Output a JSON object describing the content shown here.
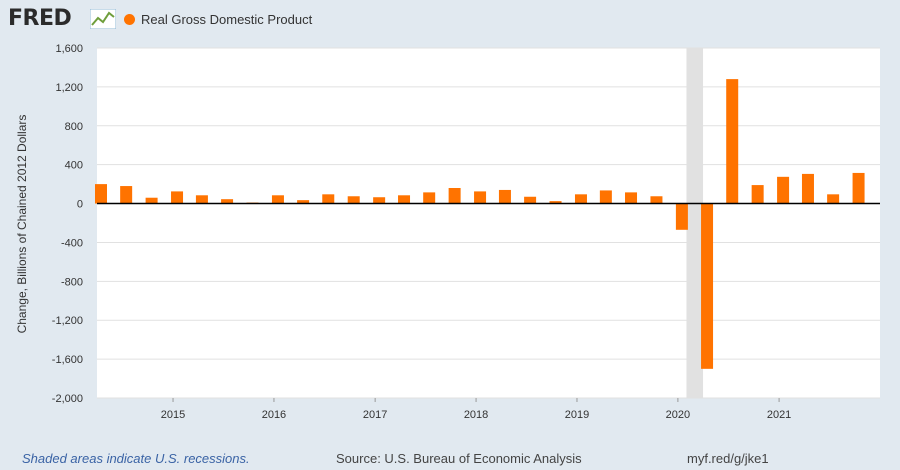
{
  "header": {
    "logo_text": "FRED",
    "logo_icon": "trend-line-icon",
    "legend_label": "Real Gross Domestic Product",
    "legend_color": "#ff7300"
  },
  "footer": {
    "recession_note": "Shaded areas indicate U.S. recessions.",
    "source": "Source: U.S. Bureau of Economic Analysis",
    "url": "myf.red/g/jke1"
  },
  "chart_data": {
    "type": "bar",
    "ylabel": "Change, Billions of Chained 2012 Dollars",
    "ylim": [
      -2000,
      1600
    ],
    "yticks": [
      1600,
      1200,
      800,
      400,
      0,
      -400,
      -800,
      -1200,
      -1600,
      -2000
    ],
    "ytick_labels": [
      "1,600",
      "1,200",
      "800",
      "400",
      "0",
      "-400",
      "-800",
      "-1,200",
      "-1,600",
      "-2,000"
    ],
    "xlim": [
      "2014-04-01",
      "2022-01-01"
    ],
    "xticks": [
      "2015-01-01",
      "2016-01-01",
      "2017-01-01",
      "2018-01-01",
      "2019-01-01",
      "2020-01-01",
      "2021-01-01"
    ],
    "xtick_labels": [
      "2015",
      "2016",
      "2017",
      "2018",
      "2019",
      "2020",
      "2021"
    ],
    "grid": true,
    "bar_color": "#ff7300",
    "recession_shading": [
      {
        "start": "2020-02-01",
        "end": "2020-04-01",
        "color": "#e1e1e1"
      }
    ],
    "series": [
      {
        "name": "Real Gross Domestic Product",
        "x": [
          "2014-04-01",
          "2014-07-01",
          "2014-10-01",
          "2015-01-01",
          "2015-04-01",
          "2015-07-01",
          "2015-10-01",
          "2016-01-01",
          "2016-04-01",
          "2016-07-01",
          "2016-10-01",
          "2017-01-01",
          "2017-04-01",
          "2017-07-01",
          "2017-10-01",
          "2018-01-01",
          "2018-04-01",
          "2018-07-01",
          "2018-10-01",
          "2019-01-01",
          "2019-04-01",
          "2019-07-01",
          "2019-10-01",
          "2020-01-01",
          "2020-04-01",
          "2020-07-01",
          "2020-10-01",
          "2021-01-01",
          "2021-04-01",
          "2021-07-01",
          "2021-10-01"
        ],
        "values": [
          200,
          180,
          60,
          125,
          85,
          45,
          10,
          85,
          35,
          95,
          75,
          65,
          85,
          115,
          160,
          125,
          140,
          70,
          25,
          95,
          135,
          115,
          75,
          -270,
          -1700,
          1280,
          190,
          275,
          305,
          95,
          315
        ]
      }
    ]
  }
}
